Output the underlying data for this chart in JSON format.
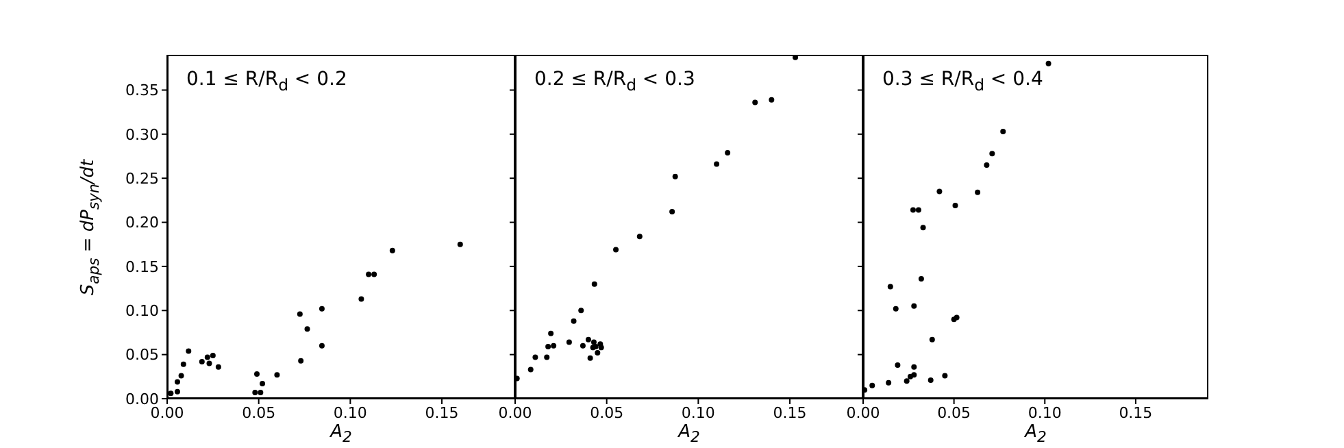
{
  "chart_data": [
    {
      "type": "scatter",
      "title": "0.1 ≤ R/R$_{d}$ < 0.2",
      "xlabel": "A$_{2}$",
      "ylabel": "S$_{aps}$ = dP$_{syn}$/dt",
      "marker": "circle",
      "xlim": [
        0,
        0.19
      ],
      "ylim": [
        0,
        0.39
      ],
      "xticks": [
        {
          "value": 0,
          "label": "0.00"
        },
        {
          "value": 0.05,
          "label": "0.05"
        },
        {
          "value": 0.1,
          "label": "0.10"
        },
        {
          "value": 0.15,
          "label": "0.15"
        }
      ],
      "yticks": [
        {
          "value": 0,
          "label": "0.00"
        },
        {
          "value": 0.05,
          "label": "0.05"
        },
        {
          "value": 0.1,
          "label": "0.10"
        },
        {
          "value": 0.15,
          "label": "0.15"
        },
        {
          "value": 0.2,
          "label": "0.20"
        },
        {
          "value": 0.25,
          "label": "0.25"
        },
        {
          "value": 0.3,
          "label": "0.30"
        },
        {
          "value": 0.35,
          "label": "0.35"
        }
      ],
      "series": [
        {
          "color": "#000000",
          "x": [
            0.002,
            0.0056,
            0.0056,
            0.0077,
            0.0089,
            0.0117,
            0.019,
            0.022,
            0.023,
            0.025,
            0.028,
            0.049,
            0.048,
            0.051,
            0.052,
            0.06,
            0.0725,
            0.073,
            0.0765,
            0.0845,
            0.0845,
            0.106,
            0.11,
            0.113,
            0.123,
            0.16
          ],
          "values": [
            0.006,
            0.008,
            0.019,
            0.026,
            0.039,
            0.054,
            0.042,
            0.047,
            0.04,
            0.049,
            0.036,
            0.028,
            0.007,
            0.007,
            0.017,
            0.027,
            0.096,
            0.043,
            0.079,
            0.102,
            0.06,
            0.113,
            0.141,
            0.141,
            0.168,
            0.175
          ]
        }
      ]
    },
    {
      "type": "scatter",
      "title": "0.2 ≤ R/R$_{d}$ < 0.3",
      "xlabel": "A$_{2}$",
      "marker": "circle",
      "tick_labels": "x",
      "xlim": [
        0,
        0.19
      ],
      "ylim": [
        0,
        0.39
      ],
      "xticks": [
        {
          "value": 0,
          "label": "0.00"
        },
        {
          "value": 0.05,
          "label": "0.05"
        },
        {
          "value": 0.1,
          "label": "0.10"
        },
        {
          "value": 0.15,
          "label": "0.15"
        }
      ],
      "yticks": [
        {
          "value": 0,
          "label": null
        },
        {
          "value": 0.05,
          "label": null
        },
        {
          "value": 0.1,
          "label": null
        },
        {
          "value": 0.15,
          "label": null
        },
        {
          "value": 0.2,
          "label": null
        },
        {
          "value": 0.25,
          "label": null
        },
        {
          "value": 0.3,
          "label": null
        },
        {
          "value": 0.35,
          "label": null
        }
      ],
      "series": [
        {
          "color": "#000000",
          "x": [
            0.001,
            0.0085,
            0.011,
            0.0173,
            0.018,
            0.0195,
            0.021,
            0.0295,
            0.032,
            0.036,
            0.037,
            0.04,
            0.041,
            0.043,
            0.0425,
            0.045,
            0.044,
            0.0465,
            0.047,
            0.0433,
            0.055,
            0.068,
            0.0857,
            0.0874,
            0.11,
            0.116,
            0.131,
            0.14,
            0.153
          ],
          "values": [
            0.023,
            0.033,
            0.047,
            0.047,
            0.059,
            0.074,
            0.06,
            0.064,
            0.088,
            0.1,
            0.06,
            0.067,
            0.046,
            0.064,
            0.058,
            0.052,
            0.059,
            0.062,
            0.058,
            0.13,
            0.169,
            0.184,
            0.212,
            0.252,
            0.266,
            0.279,
            0.336,
            0.339,
            0.387
          ]
        }
      ]
    },
    {
      "type": "scatter",
      "title": "0.3 ≤ R/R$_{d}$ < 0.4",
      "xlabel": "A$_{2}$",
      "marker": "circle",
      "tick_labels": "x",
      "xlim": [
        0,
        0.19
      ],
      "ylim": [
        0,
        0.39
      ],
      "xticks": [
        {
          "value": 0,
          "label": "0.00"
        },
        {
          "value": 0.05,
          "label": "0.05"
        },
        {
          "value": 0.1,
          "label": "0.10"
        },
        {
          "value": 0.15,
          "label": "0.15"
        }
      ],
      "yticks": [
        {
          "value": 0,
          "label": null
        },
        {
          "value": 0.05,
          "label": null
        },
        {
          "value": 0.1,
          "label": null
        },
        {
          "value": 0.15,
          "label": null
        },
        {
          "value": 0.2,
          "label": null
        },
        {
          "value": 0.25,
          "label": null
        },
        {
          "value": 0.3,
          "label": null
        },
        {
          "value": 0.35,
          "label": null
        }
      ],
      "series": [
        {
          "color": "#000000",
          "x": [
            0.0008,
            0.005,
            0.014,
            0.024,
            0.026,
            0.028,
            0.019,
            0.028,
            0.0372,
            0.045,
            0.038,
            0.05,
            0.0515,
            0.015,
            0.018,
            0.028,
            0.032,
            0.033,
            0.0275,
            0.0305,
            0.042,
            0.0507,
            0.063,
            0.068,
            0.071,
            0.077,
            0.102
          ],
          "values": [
            0.01,
            0.015,
            0.018,
            0.02,
            0.025,
            0.027,
            0.038,
            0.036,
            0.021,
            0.026,
            0.067,
            0.09,
            0.092,
            0.127,
            0.102,
            0.105,
            0.136,
            0.194,
            0.214,
            0.214,
            0.235,
            0.219,
            0.234,
            0.265,
            0.278,
            0.303,
            0.38
          ]
        }
      ]
    }
  ]
}
